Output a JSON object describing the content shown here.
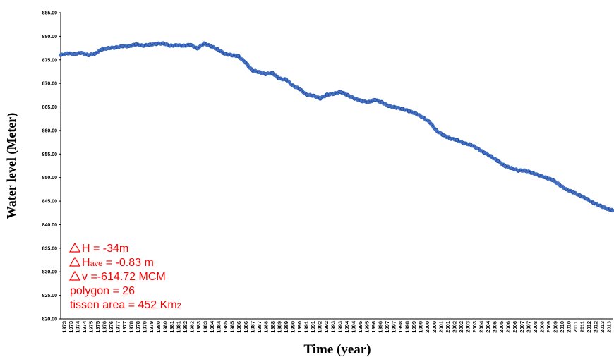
{
  "chart_data": {
    "type": "line",
    "xlabel": "Time (year)",
    "ylabel": "Water level (Meter)",
    "ylim": [
      820,
      885
    ],
    "yticks": [
      "820.00",
      "825.00",
      "830.00",
      "835.00",
      "840.00",
      "845.00",
      "850.00",
      "855.00",
      "860.00",
      "865.00",
      "870.00",
      "875.00",
      "880.00",
      "885.00"
    ],
    "xlim": [
      1973,
      2013.4
    ],
    "xticks": [
      "1973",
      "1973",
      "1974",
      "1974",
      "1975",
      "1975",
      "1976",
      "1976",
      "1977",
      "1977",
      "1978",
      "1978",
      "1979",
      "1979",
      "1980",
      "1980",
      "1981",
      "1981",
      "1982",
      "1982",
      "1983",
      "1983",
      "1984",
      "1984",
      "1985",
      "1985",
      "1986",
      "1986",
      "1987",
      "1987",
      "1988",
      "1988",
      "1989",
      "1989",
      "1990",
      "1990",
      "1991",
      "1991",
      "1992",
      "1992",
      "1993",
      "1993",
      "1994",
      "1994",
      "1995",
      "1995",
      "1996",
      "1996",
      "1997",
      "1997",
      "1998",
      "1998",
      "1999",
      "1999",
      "2000",
      "2000",
      "2001",
      "2001",
      "2002",
      "2002",
      "2003",
      "2003",
      "2004",
      "2004",
      "2005",
      "2005",
      "2006",
      "2006",
      "2007",
      "2007",
      "2008",
      "2008",
      "2009",
      "2009",
      "2010",
      "2010",
      "2011",
      "2011",
      "2012",
      "2012",
      "2013",
      "2013"
    ],
    "grid": false,
    "line_color": "#4472c4",
    "marker_edge_color": "#1f3f8f",
    "series": [
      {
        "x": [
          1973.0,
          1973.5,
          1974.0,
          1974.5,
          1975.0,
          1975.5,
          1976.0,
          1976.5,
          1977.0,
          1977.5,
          1978.0,
          1978.5,
          1979.0,
          1979.5,
          1980.0,
          1980.5,
          1981.0,
          1981.5,
          1982.0,
          1982.5,
          1983.0,
          1983.5,
          1984.0,
          1984.5,
          1985.0,
          1985.5,
          1986.0,
          1986.5,
          1987.0,
          1987.5,
          1988.0,
          1988.5,
          1989.0,
          1989.5,
          1990.0,
          1990.5,
          1991.0,
          1991.5,
          1992.0,
          1992.5,
          1993.0,
          1993.5,
          1994.0,
          1994.5,
          1995.0,
          1995.5,
          1996.0,
          1996.5,
          1997.0,
          1997.5,
          1998.0,
          1998.5,
          1999.0,
          1999.5,
          2000.0,
          2000.5,
          2001.0,
          2001.5,
          2002.0,
          2002.5,
          2003.0,
          2003.5,
          2004.0,
          2004.5,
          2005.0,
          2005.5,
          2006.0,
          2006.5,
          2007.0,
          2007.5,
          2008.0,
          2008.5,
          2009.0,
          2009.5,
          2010.0,
          2010.5,
          2011.0,
          2011.5,
          2012.0,
          2012.5,
          2013.0,
          2013.4
        ],
        "y": [
          876.0,
          876.4,
          876.2,
          876.5,
          876.0,
          876.3,
          877.2,
          877.5,
          877.6,
          877.9,
          877.9,
          878.3,
          878.0,
          878.2,
          878.4,
          878.5,
          878.0,
          878.1,
          878.0,
          878.2,
          877.4,
          878.5,
          877.9,
          877.2,
          876.3,
          876.0,
          875.8,
          874.5,
          872.8,
          872.4,
          872.0,
          872.2,
          871.0,
          870.8,
          869.5,
          868.8,
          867.6,
          867.4,
          866.8,
          867.6,
          867.8,
          868.2,
          867.5,
          866.8,
          866.3,
          866.0,
          866.5,
          866.0,
          865.2,
          864.9,
          864.6,
          864.1,
          863.6,
          862.8,
          861.8,
          860.0,
          859.0,
          858.3,
          858.0,
          857.3,
          857.0,
          856.2,
          855.3,
          854.5,
          853.5,
          852.5,
          852.0,
          851.5,
          851.5,
          851.0,
          850.5,
          850.0,
          849.5,
          848.5,
          847.5,
          846.9,
          846.2,
          845.5,
          844.6,
          844.0,
          843.4,
          843.0
        ]
      }
    ],
    "annotations": {
      "dh_prefix": "H = -34m",
      "dhave_prefix": "H",
      "dhave_sub": "ave",
      "dhave_suffix": " = -0.83 m",
      "dv_prefix": "v =-614.72 MCM",
      "polygon": "polygon = 26",
      "tissen_prefix": "tissen area = 452 Km",
      "tissen_sub": "2",
      "color": "#ff0000"
    }
  }
}
